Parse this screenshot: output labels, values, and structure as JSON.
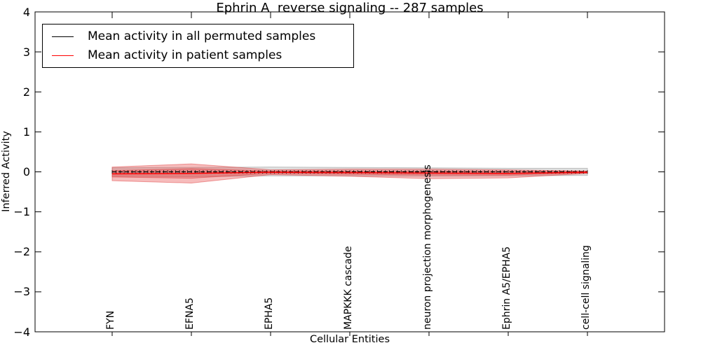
{
  "chart_data": {
    "type": "line",
    "title": "Ephrin A  reverse signaling -- 287 samples",
    "xlabel": "Cellular Entities",
    "ylabel": "Inferred Activity",
    "ylim": [
      -4,
      4
    ],
    "ytick_values": [
      4,
      3,
      2,
      1,
      0,
      -1,
      -2,
      -3,
      -4
    ],
    "ytick_labels": [
      "4",
      "3",
      "2",
      "1",
      "0",
      "−1",
      "−2",
      "−3",
      "−4"
    ],
    "categories": [
      "FYN",
      "EFNA5",
      "EPHA5",
      "MAPKKK cascade",
      "neuron projection morphogenesis",
      "Ephrin A5/EPHA5",
      "cell-cell signaling"
    ],
    "grid": false,
    "legend_position": "upper left",
    "series": [
      {
        "name": "Mean activity in all permuted samples",
        "color": "#000000",
        "linestyle": "dashed",
        "markers": "vertical-tick",
        "values": [
          0,
          0,
          0,
          0,
          0,
          0,
          0
        ],
        "band": {
          "label": "permuted-samples-std-band",
          "fill": "#a0a0a0",
          "opacity": 0.32,
          "edge": "#808080",
          "upper": [
            0.1,
            0.11,
            0.12,
            0.11,
            0.1,
            0.09,
            0.09
          ],
          "lower": [
            -0.11,
            -0.12,
            -0.1,
            -0.1,
            -0.11,
            -0.1,
            -0.09
          ]
        }
      },
      {
        "name": "Mean activity in patient samples",
        "color": "#ff0000",
        "linestyle": "solid",
        "markers": "none",
        "values": [
          -0.05,
          -0.04,
          -0.01,
          -0.02,
          -0.03,
          -0.04,
          -0.01
        ],
        "band_outer": {
          "label": "patient-samples-outer-std-band",
          "fill": "#e64545",
          "opacity": 0.36,
          "edge": "#dd3333",
          "upper": [
            0.12,
            0.2,
            0.05,
            0.07,
            0.07,
            0.05,
            0.02
          ],
          "lower": [
            -0.22,
            -0.28,
            -0.07,
            -0.11,
            -0.17,
            -0.15,
            -0.04
          ]
        },
        "band_inner": {
          "label": "patient-samples-inner-std-band",
          "fill": "#e64545",
          "opacity": 0.36,
          "edge": "#dd3333",
          "upper": [
            0.03,
            0.08,
            0.02,
            0.02,
            0.02,
            0.01,
            0.01
          ],
          "lower": [
            -0.13,
            -0.16,
            -0.04,
            -0.06,
            -0.08,
            -0.08,
            -0.03
          ]
        }
      }
    ]
  },
  "legend": {
    "entries": [
      {
        "label": "Mean activity in all permuted samples",
        "color": "#000000"
      },
      {
        "label": "Mean activity in patient samples",
        "color": "#ff0000"
      }
    ]
  }
}
